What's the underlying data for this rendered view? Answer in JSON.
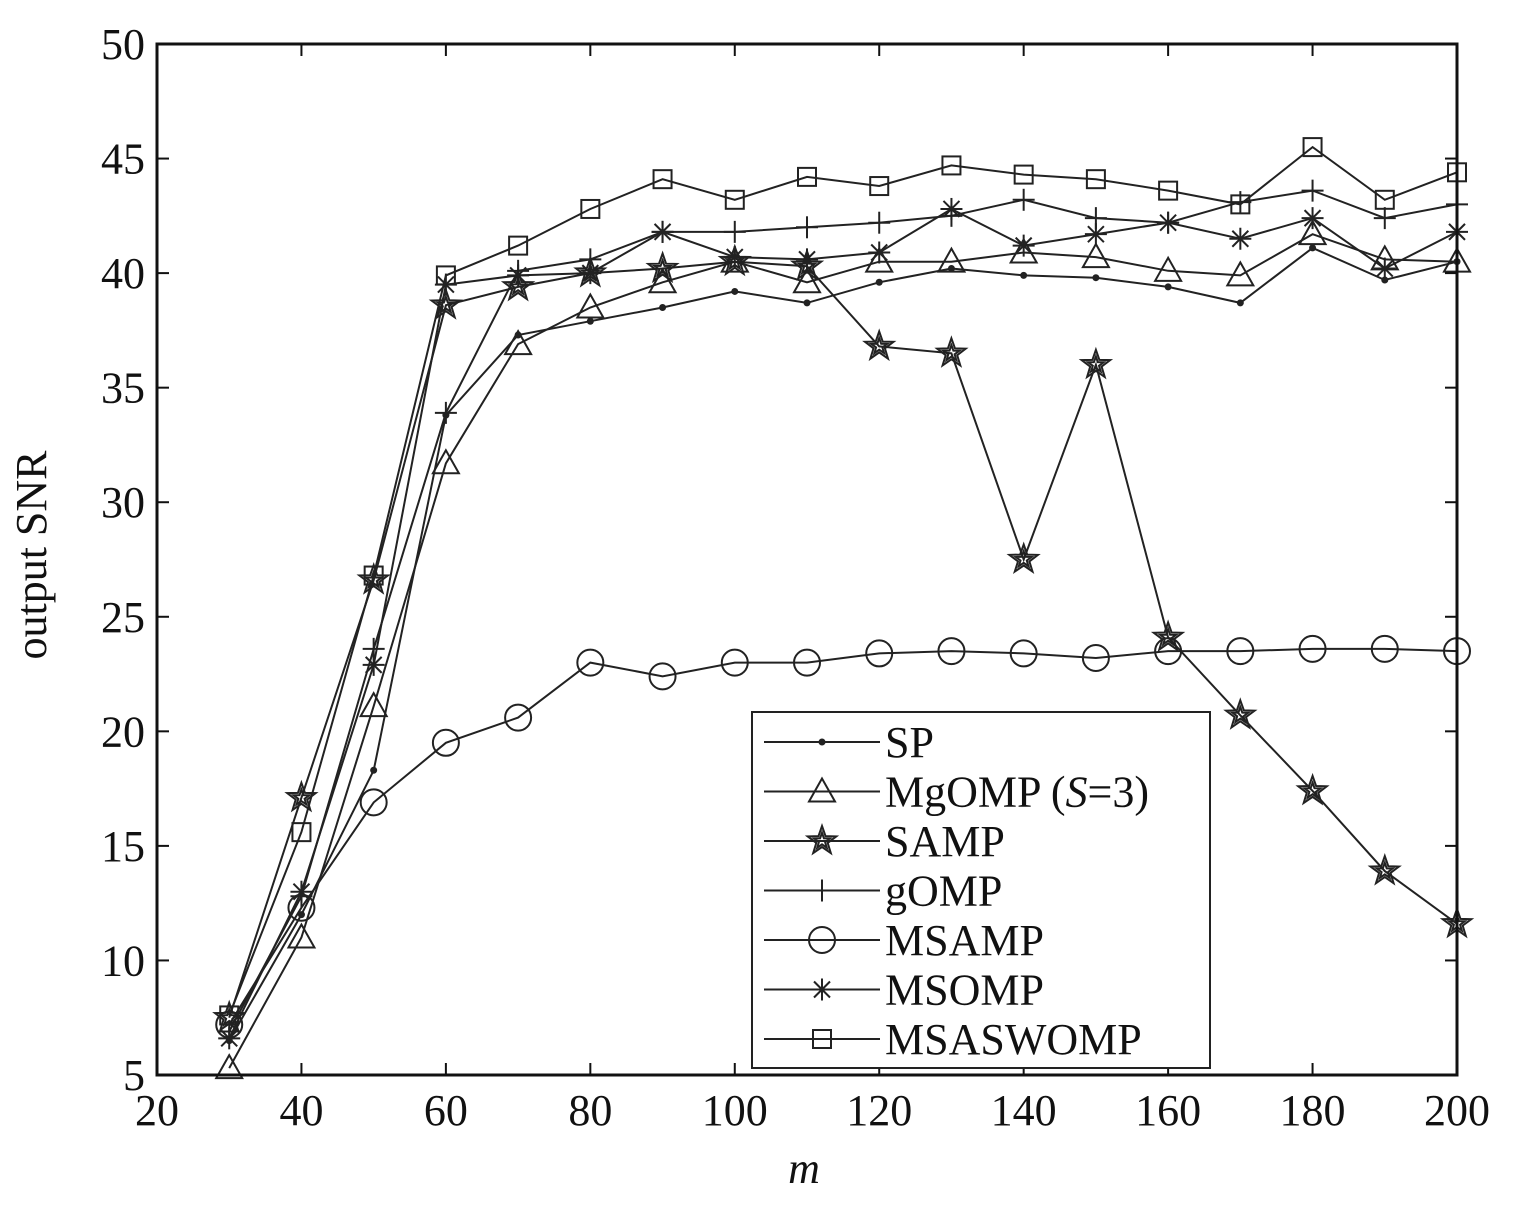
{
  "chart_data": {
    "type": "line",
    "xlabel": "m",
    "ylabel": "output SNR",
    "xlim": [
      20,
      200
    ],
    "ylim": [
      5,
      50
    ],
    "xticks": [
      20,
      40,
      60,
      80,
      100,
      120,
      140,
      160,
      180,
      200
    ],
    "yticks": [
      5,
      10,
      15,
      20,
      25,
      30,
      35,
      40,
      45,
      50
    ],
    "grid": false,
    "legend_position": "bottom-right",
    "x": [
      30,
      40,
      50,
      60,
      70,
      80,
      90,
      100,
      110,
      120,
      130,
      140,
      150,
      160,
      170,
      180,
      190,
      200
    ],
    "series": [
      {
        "name": "SP",
        "marker": "dot",
        "values": [
          6.5,
          12.0,
          18.3,
          33.8,
          37.3,
          37.9,
          38.5,
          39.2,
          38.7,
          39.6,
          40.2,
          39.9,
          39.8,
          39.4,
          38.7,
          41.1,
          39.7,
          40.5
        ]
      },
      {
        "name": "MgOMP (S=3)",
        "name_plain": "MgOMP (",
        "name_italic": "S",
        "name_rest": "=3)",
        "marker": "triangle",
        "values": [
          5.3,
          11.0,
          21.1,
          31.7,
          36.9,
          38.5,
          39.6,
          40.5,
          39.6,
          40.5,
          40.5,
          40.9,
          40.7,
          40.1,
          39.9,
          41.7,
          40.6,
          40.5
        ]
      },
      {
        "name": "SAMP",
        "marker": "star",
        "values": [
          7.5,
          17.1,
          26.6,
          38.6,
          39.4,
          40.0,
          40.2,
          40.5,
          40.3,
          36.8,
          36.5,
          27.5,
          36.0,
          24.1,
          20.7,
          17.4,
          13.9,
          11.6
        ]
      },
      {
        "name": "gOMP",
        "marker": "plus",
        "values": [
          6.9,
          12.8,
          23.6,
          33.9,
          40.1,
          40.6,
          41.8,
          41.8,
          42.0,
          42.2,
          42.5,
          43.2,
          42.4,
          42.2,
          43.1,
          43.6,
          42.4,
          43.0
        ]
      },
      {
        "name": "MSAMP",
        "marker": "circle",
        "values": [
          7.2,
          12.3,
          16.9,
          19.5,
          20.6,
          23.0,
          22.4,
          23.0,
          23.0,
          23.4,
          23.5,
          23.4,
          23.2,
          23.5,
          23.5,
          23.6,
          23.6,
          23.5
        ]
      },
      {
        "name": "MSOMP",
        "marker": "asterisk",
        "values": [
          6.6,
          13.0,
          22.9,
          39.5,
          39.9,
          40.0,
          41.8,
          40.7,
          40.6,
          40.9,
          42.8,
          41.2,
          41.7,
          42.2,
          41.5,
          42.4,
          40.2,
          41.8
        ]
      },
      {
        "name": "MSASWOMP",
        "marker": "square",
        "values": [
          7.6,
          15.6,
          26.8,
          39.9,
          41.2,
          42.8,
          44.1,
          43.2,
          44.2,
          43.8,
          44.7,
          44.3,
          44.1,
          43.6,
          43.0,
          45.5,
          43.2,
          44.4
        ]
      }
    ]
  }
}
